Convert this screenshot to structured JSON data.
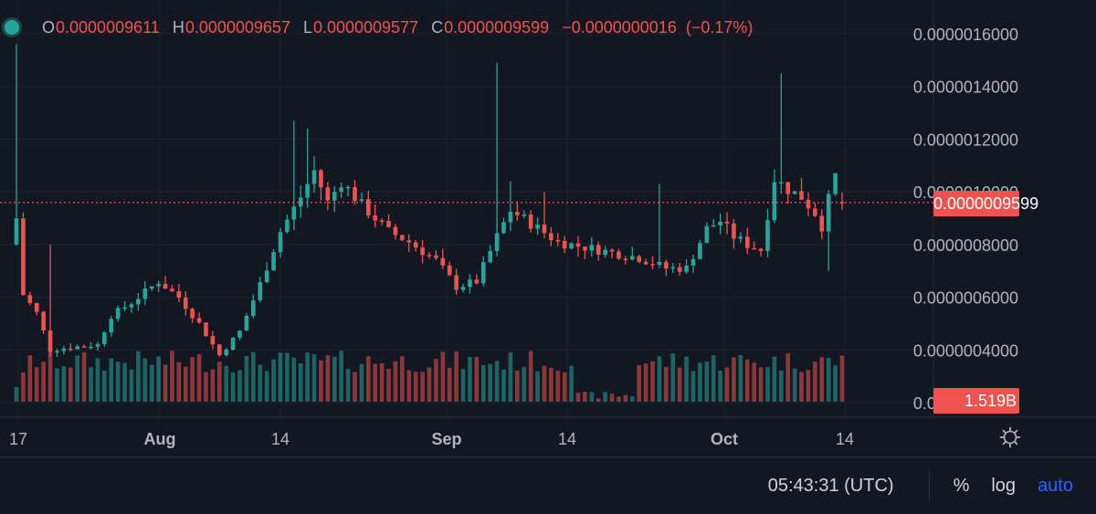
{
  "ohlc_bar": {
    "o_label": "O",
    "o_value": "0.0000009611",
    "h_label": "H",
    "h_value": "0.0000009657",
    "l_label": "L",
    "l_value": "0.0000009577",
    "c_label": "C",
    "c_value": "0.0000009599",
    "change": "−0.0000000016",
    "change_pct": "(−0.17%)"
  },
  "price_tag": "0.0000009599",
  "volume_tag": "1.519B",
  "bottom": {
    "time": "05:43:31 (UTC)",
    "percent_label": "%",
    "log_label": "log",
    "auto_label": "auto"
  },
  "colors": {
    "up": "#26a69a",
    "down": "#ef5350",
    "background": "#131722",
    "accent": "#2962ff"
  },
  "chart_data": {
    "type": "candlestick",
    "y_ticks": [
      "0.0000016000",
      "0.0000014000",
      "0.0000012000",
      "0.0000010000",
      "0.0000008000",
      "0.0000006000",
      "0.0000004000",
      "0.0000002000"
    ],
    "x_ticks": [
      "17",
      "Aug",
      "14",
      "Sep",
      "14",
      "Oct",
      "14"
    ],
    "ylim": [
      1.4e-07,
      1.67e-06
    ],
    "last_price": 9.599e-07,
    "last_volume": "1.519B",
    "candle_anchors": [
      {
        "day": 0,
        "close": 9e-07
      },
      {
        "day": 1,
        "close": 6.1e-07
      },
      {
        "day": 3,
        "close": 5.4e-07
      },
      {
        "day": 5,
        "close": 4e-07
      },
      {
        "day": 8,
        "close": 4.1e-07
      },
      {
        "day": 12,
        "close": 4.2e-07
      },
      {
        "day": 14,
        "close": 5.3e-07
      },
      {
        "day": 17,
        "close": 5.8e-07
      },
      {
        "day": 21,
        "close": 6.6e-07
      },
      {
        "day": 24,
        "close": 6e-07
      },
      {
        "day": 27,
        "close": 5e-07
      },
      {
        "day": 30,
        "close": 3.8e-07
      },
      {
        "day": 33,
        "close": 4.7e-07
      },
      {
        "day": 36,
        "close": 6.5e-07
      },
      {
        "day": 39,
        "close": 8.5e-07
      },
      {
        "day": 42,
        "close": 9.8e-07
      },
      {
        "day": 44,
        "close": 1.08e-06
      },
      {
        "day": 46,
        "close": 9.6e-07
      },
      {
        "day": 48,
        "close": 1.04e-06
      },
      {
        "day": 51,
        "close": 9.5e-07
      },
      {
        "day": 55,
        "close": 8.5e-07
      },
      {
        "day": 58,
        "close": 8.1e-07
      },
      {
        "day": 62,
        "close": 7.4e-07
      },
      {
        "day": 65,
        "close": 6.4e-07
      },
      {
        "day": 68,
        "close": 6.6e-07
      },
      {
        "day": 71,
        "close": 8.3e-07
      },
      {
        "day": 73,
        "close": 9.3e-07
      },
      {
        "day": 76,
        "close": 8.8e-07
      },
      {
        "day": 80,
        "close": 8.1e-07
      },
      {
        "day": 84,
        "close": 7.9e-07
      },
      {
        "day": 88,
        "close": 7.7e-07
      },
      {
        "day": 92,
        "close": 7.5e-07
      },
      {
        "day": 96,
        "close": 7.1e-07
      },
      {
        "day": 99,
        "close": 7.1e-07
      },
      {
        "day": 102,
        "close": 8.6e-07
      },
      {
        "day": 104,
        "close": 8.9e-07
      },
      {
        "day": 106,
        "close": 8.3e-07
      },
      {
        "day": 108,
        "close": 8e-07
      },
      {
        "day": 110,
        "close": 7.8e-07
      },
      {
        "day": 112,
        "close": 1.05e-06
      },
      {
        "day": 114,
        "close": 1.01e-06
      },
      {
        "day": 116,
        "close": 9.8e-07
      },
      {
        "day": 118,
        "close": 9.2e-07
      },
      {
        "day": 119,
        "close": 8.7e-07
      },
      {
        "day": 120,
        "close": 9.7e-07
      },
      {
        "day": 121,
        "close": 1.06e-06
      },
      {
        "day": 122,
        "close": 9.599e-07
      }
    ],
    "spikes": [
      {
        "day": 0,
        "high": 1.56e-06
      },
      {
        "day": 5,
        "high": 8e-07
      },
      {
        "day": 41,
        "high": 1.27e-06
      },
      {
        "day": 43,
        "high": 1.24e-06
      },
      {
        "day": 71,
        "high": 1.49e-06
      },
      {
        "day": 73,
        "high": 1.04e-06
      },
      {
        "day": 78,
        "high": 1e-06
      },
      {
        "day": 95,
        "high": 1.03e-06
      },
      {
        "day": 113,
        "high": 1.45e-06
      },
      {
        "day": 120,
        "low": 7e-07
      }
    ],
    "volume_scale": "relative"
  }
}
